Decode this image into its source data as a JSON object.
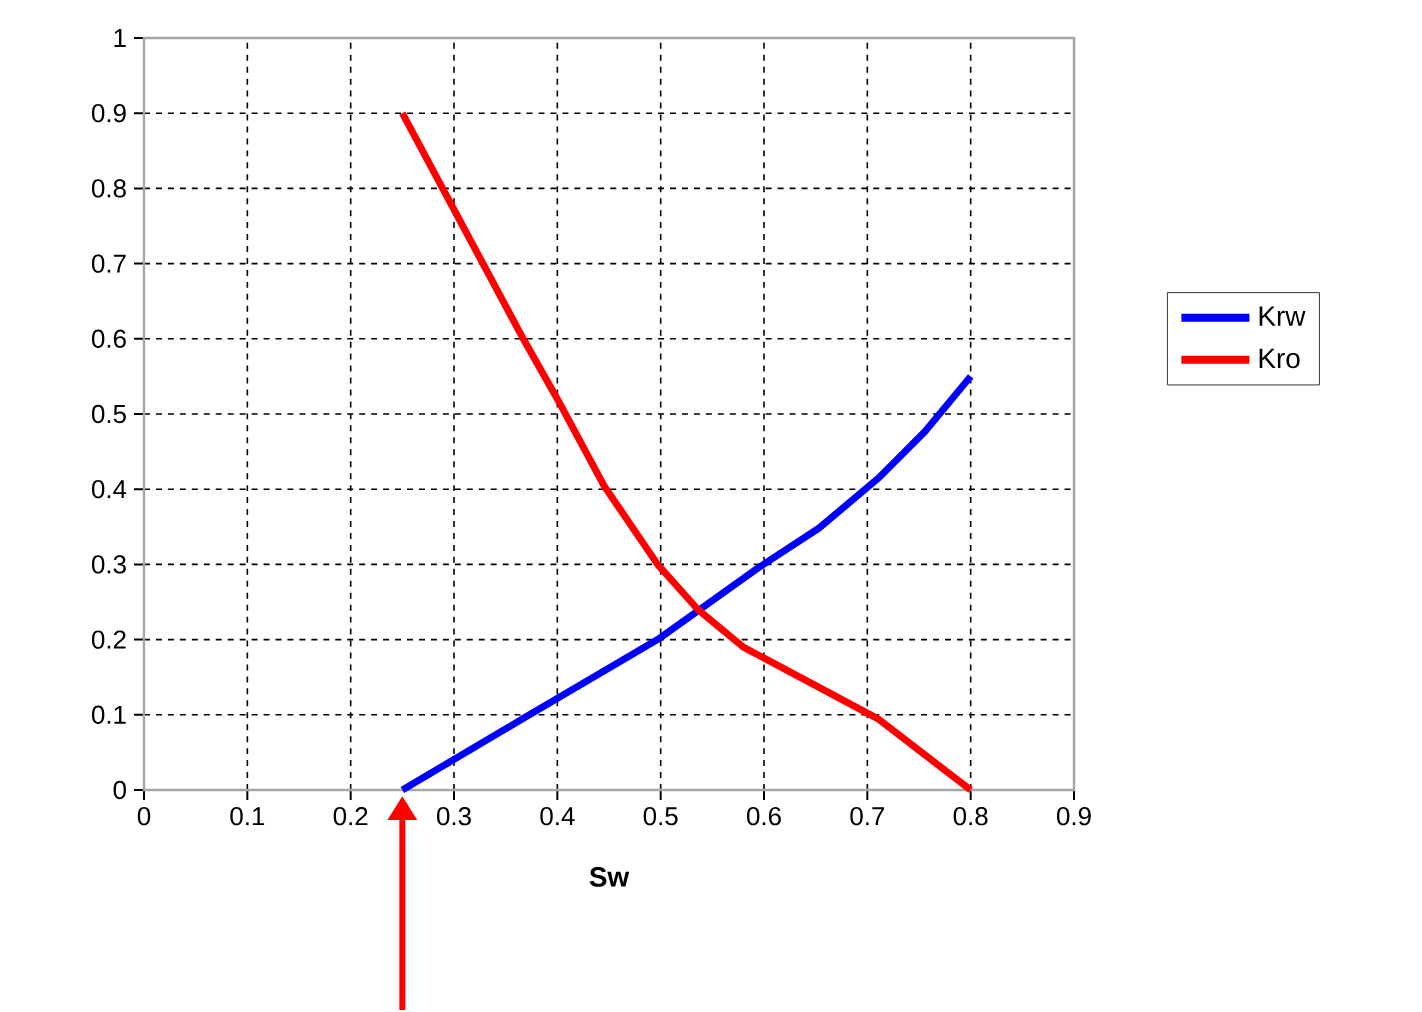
{
  "chart_data": {
    "type": "line",
    "xlabel": "Sw",
    "xlim": [
      0,
      0.9
    ],
    "ylim": [
      0,
      1
    ],
    "xticks": [
      0,
      0.1,
      0.2,
      0.3,
      0.4,
      0.5,
      0.6,
      0.7,
      0.8,
      0.9
    ],
    "yticks": [
      0,
      0.1,
      0.2,
      0.3,
      0.4,
      0.5,
      0.6,
      0.7,
      0.8,
      0.9,
      1
    ],
    "grid": true,
    "legend": "right",
    "marker": "none",
    "line_style": "solid",
    "series": [
      {
        "name": "Krw",
        "color": "#0000ff",
        "x": [
          0.25,
          0.373,
          0.497,
          0.594,
          0.653,
          0.711,
          0.756,
          0.8
        ],
        "values": [
          0,
          0.1,
          0.2,
          0.295,
          0.348,
          0.415,
          0.477,
          0.55
        ]
      },
      {
        "name": "Kro",
        "color": "#ff0000",
        "x": [
          0.25,
          0.289,
          0.367,
          0.4,
          0.445,
          0.497,
          0.536,
          0.58,
          0.71,
          0.8
        ],
        "values": [
          0.9,
          0.8,
          0.6,
          0.52,
          0.405,
          0.3,
          0.24,
          0.19,
          0.095,
          0
        ]
      }
    ]
  }
}
